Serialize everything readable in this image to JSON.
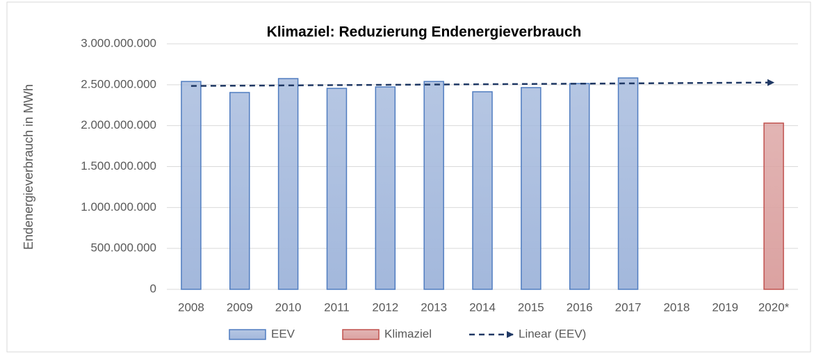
{
  "chart_data": {
    "type": "bar",
    "title": "Klimaziel: Reduzierung Endenergieverbrauch",
    "y_label": "Endenergieverbrauch in MWh",
    "categories": [
      "2008",
      "2009",
      "2010",
      "2011",
      "2012",
      "2013",
      "2014",
      "2015",
      "2016",
      "2017",
      "2018",
      "2019",
      "2020*"
    ],
    "series": [
      {
        "name": "EEV",
        "color": "#a3b8dc",
        "values": [
          2540000000,
          2405000000,
          2575000000,
          2456000000,
          2473000000,
          2540000000,
          2414000000,
          2465000000,
          2515000000,
          2583000000,
          null,
          null,
          null
        ]
      },
      {
        "name": "Klimaziel",
        "color": "#dba2a1",
        "values": [
          null,
          null,
          null,
          null,
          null,
          null,
          null,
          null,
          null,
          null,
          null,
          null,
          2031000000
        ]
      }
    ],
    "trend": {
      "type": "line",
      "name": "Linear (EEV)",
      "color": "#1f3864",
      "values": [
        2485000000,
        2488500000,
        2492000000,
        2495500000,
        2499000000,
        2502500000,
        2506000000,
        2509500000,
        2513000000,
        2516500000,
        2520000000,
        2523500000,
        2527000000
      ]
    },
    "ylim": [
      0,
      3000000000
    ],
    "yticks": [
      0,
      {
        "value": 500000000,
        "label": "500.000.000"
      },
      {
        "value": 1000000000,
        "label": "1.000.000.000"
      },
      {
        "value": 1500000000,
        "label": "1.500.000.000"
      },
      {
        "value": 2000000000,
        "label": "2.000.000.000"
      },
      {
        "value": 2500000000,
        "label": "2.500.000.000"
      },
      {
        "value": 3000000000,
        "label": "3.000.000.000"
      }
    ],
    "grid": true,
    "legend": "bottom"
  }
}
